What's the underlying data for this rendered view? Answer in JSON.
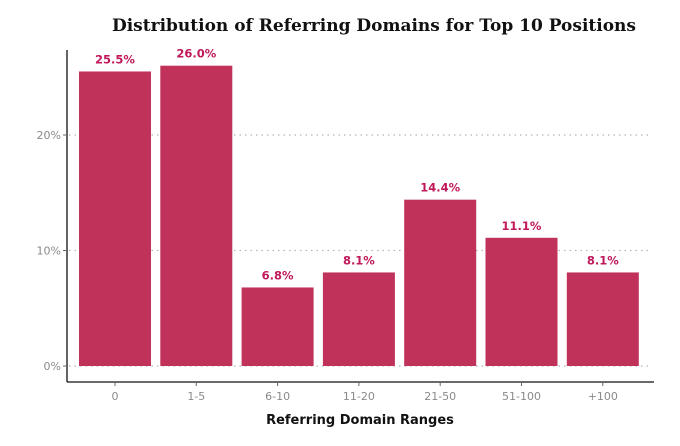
{
  "chart_data": {
    "type": "bar",
    "title": "Distribution of Referring Domains for Top 10 Positions",
    "xlabel": "Referring Domain Ranges",
    "ylabel": "",
    "categories": [
      "0",
      "1-5",
      "6-10",
      "11-20",
      "21-50",
      "51-100",
      "+100"
    ],
    "values": [
      25.5,
      26.0,
      6.8,
      8.1,
      14.4,
      11.1,
      8.1
    ],
    "data_labels": [
      "25.5%",
      "26.0%",
      "6.8%",
      "8.1%",
      "14.4%",
      "11.1%",
      "8.1%"
    ],
    "yticks": [
      0,
      10,
      20
    ],
    "ytick_labels": [
      "0%",
      "10%",
      "20%"
    ],
    "ylim": [
      0,
      27.5
    ],
    "grid": "horizontal dotted",
    "legend": "none",
    "colors": {
      "bar": "#c0325a",
      "label": "#c0185a"
    }
  }
}
